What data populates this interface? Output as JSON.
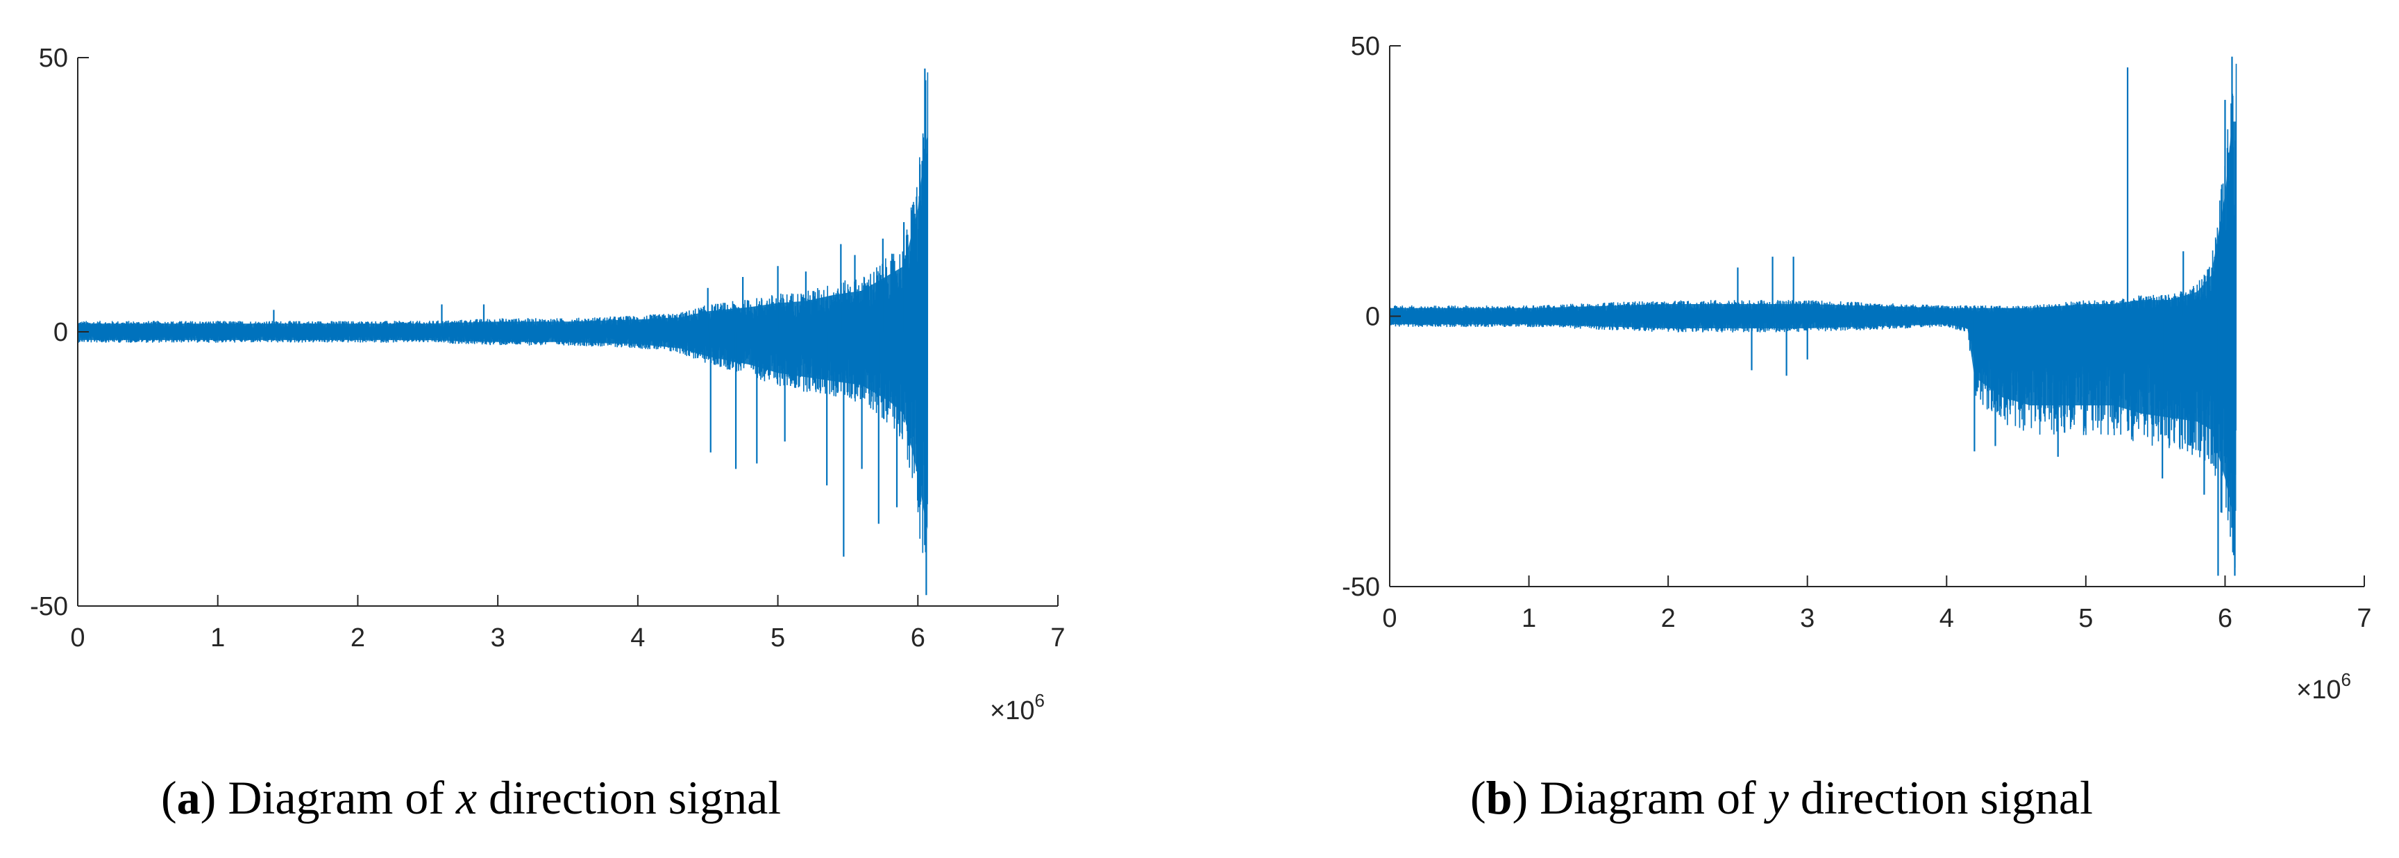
{
  "chart_data": [
    {
      "type": "line",
      "id": "a",
      "color": "#0072BD",
      "xlim": [
        0,
        7
      ],
      "ylim": [
        -50,
        50
      ],
      "x_ticks": [
        "0",
        "1",
        "2",
        "3",
        "4",
        "5",
        "6",
        "7"
      ],
      "y_ticks": [
        "50",
        "0",
        "-50"
      ],
      "x_multiplier": {
        "base": "×10",
        "exponent": "6"
      },
      "caption": {
        "tag": "a",
        "prefix": "Diagram of ",
        "variable": "x",
        "suffix": " direction signal"
      },
      "envelope_x": [
        0,
        0.5,
        1,
        1.5,
        2,
        2.5,
        3,
        3.5,
        4,
        4.3,
        4.5,
        4.8,
        5.0,
        5.2,
        5.4,
        5.6,
        5.7,
        5.8,
        5.9,
        6.0,
        6.05,
        6.07
      ],
      "envelope_upper": [
        2,
        2,
        2,
        2,
        2,
        2,
        2.5,
        2.5,
        3,
        3.5,
        5,
        6,
        7,
        7.5,
        9,
        10,
        12,
        14,
        16,
        30,
        45,
        48
      ],
      "envelope_lower": [
        -2,
        -2,
        -2,
        -2,
        -2,
        -2,
        -2.5,
        -2.5,
        -3,
        -4,
        -6,
        -8,
        -10,
        -11,
        -12,
        -13,
        -15,
        -17,
        -20,
        -35,
        -45,
        -48
      ],
      "spikes": [
        [
          1.4,
          4
        ],
        [
          2.6,
          5
        ],
        [
          2.9,
          5
        ],
        [
          4.5,
          8
        ],
        [
          4.52,
          -22
        ],
        [
          4.7,
          -25
        ],
        [
          4.75,
          10
        ],
        [
          4.85,
          -24
        ],
        [
          5.0,
          12
        ],
        [
          5.05,
          -20
        ],
        [
          5.2,
          11
        ],
        [
          5.35,
          -28
        ],
        [
          5.45,
          16
        ],
        [
          5.47,
          -41
        ],
        [
          5.55,
          14
        ],
        [
          5.6,
          -25
        ],
        [
          5.72,
          -35
        ],
        [
          5.75,
          17
        ],
        [
          5.85,
          -32
        ],
        [
          5.9,
          20
        ],
        [
          6.05,
          48
        ],
        [
          6.06,
          -48
        ]
      ]
    },
    {
      "type": "line",
      "id": "b",
      "color": "#0072BD",
      "xlim": [
        0,
        7
      ],
      "ylim": [
        -50,
        50
      ],
      "x_ticks": [
        "0",
        "1",
        "2",
        "3",
        "4",
        "5",
        "6",
        "7"
      ],
      "y_ticks": [
        "50",
        "0",
        "-50"
      ],
      "x_multiplier": {
        "base": "×10",
        "exponent": "6"
      },
      "caption": {
        "tag": "b",
        "prefix": "Diagram of ",
        "variable": "y",
        "suffix": " direction signal"
      },
      "envelope_x": [
        0,
        0.5,
        1,
        1.5,
        2,
        2.5,
        3,
        3.5,
        4,
        4.15,
        4.2,
        4.4,
        4.6,
        4.8,
        5.0,
        5.2,
        5.4,
        5.6,
        5.8,
        5.9,
        6.0,
        6.05,
        6.08
      ],
      "envelope_upper": [
        2,
        2,
        2,
        2.5,
        3,
        3,
        3,
        2.5,
        2,
        2,
        2,
        2,
        2,
        2.5,
        3,
        3,
        4,
        4,
        6,
        10,
        30,
        48,
        48
      ],
      "envelope_lower": [
        -2,
        -2,
        -2,
        -2.5,
        -3,
        -3,
        -3,
        -2.5,
        -2,
        -3,
        -15,
        -20,
        -22,
        -22,
        -22,
        -22,
        -24,
        -25,
        -26,
        -28,
        -40,
        -48,
        -48
      ],
      "spikes": [
        [
          2.5,
          9
        ],
        [
          2.6,
          -10
        ],
        [
          2.75,
          11
        ],
        [
          2.85,
          -11
        ],
        [
          2.9,
          11
        ],
        [
          3.0,
          -8
        ],
        [
          4.2,
          -25
        ],
        [
          4.35,
          -24
        ],
        [
          4.8,
          -26
        ],
        [
          5.3,
          46
        ],
        [
          5.55,
          -30
        ],
        [
          5.7,
          12
        ],
        [
          5.85,
          -33
        ],
        [
          5.95,
          -48
        ],
        [
          6.0,
          40
        ],
        [
          6.05,
          48
        ],
        [
          6.07,
          -48
        ]
      ]
    }
  ]
}
